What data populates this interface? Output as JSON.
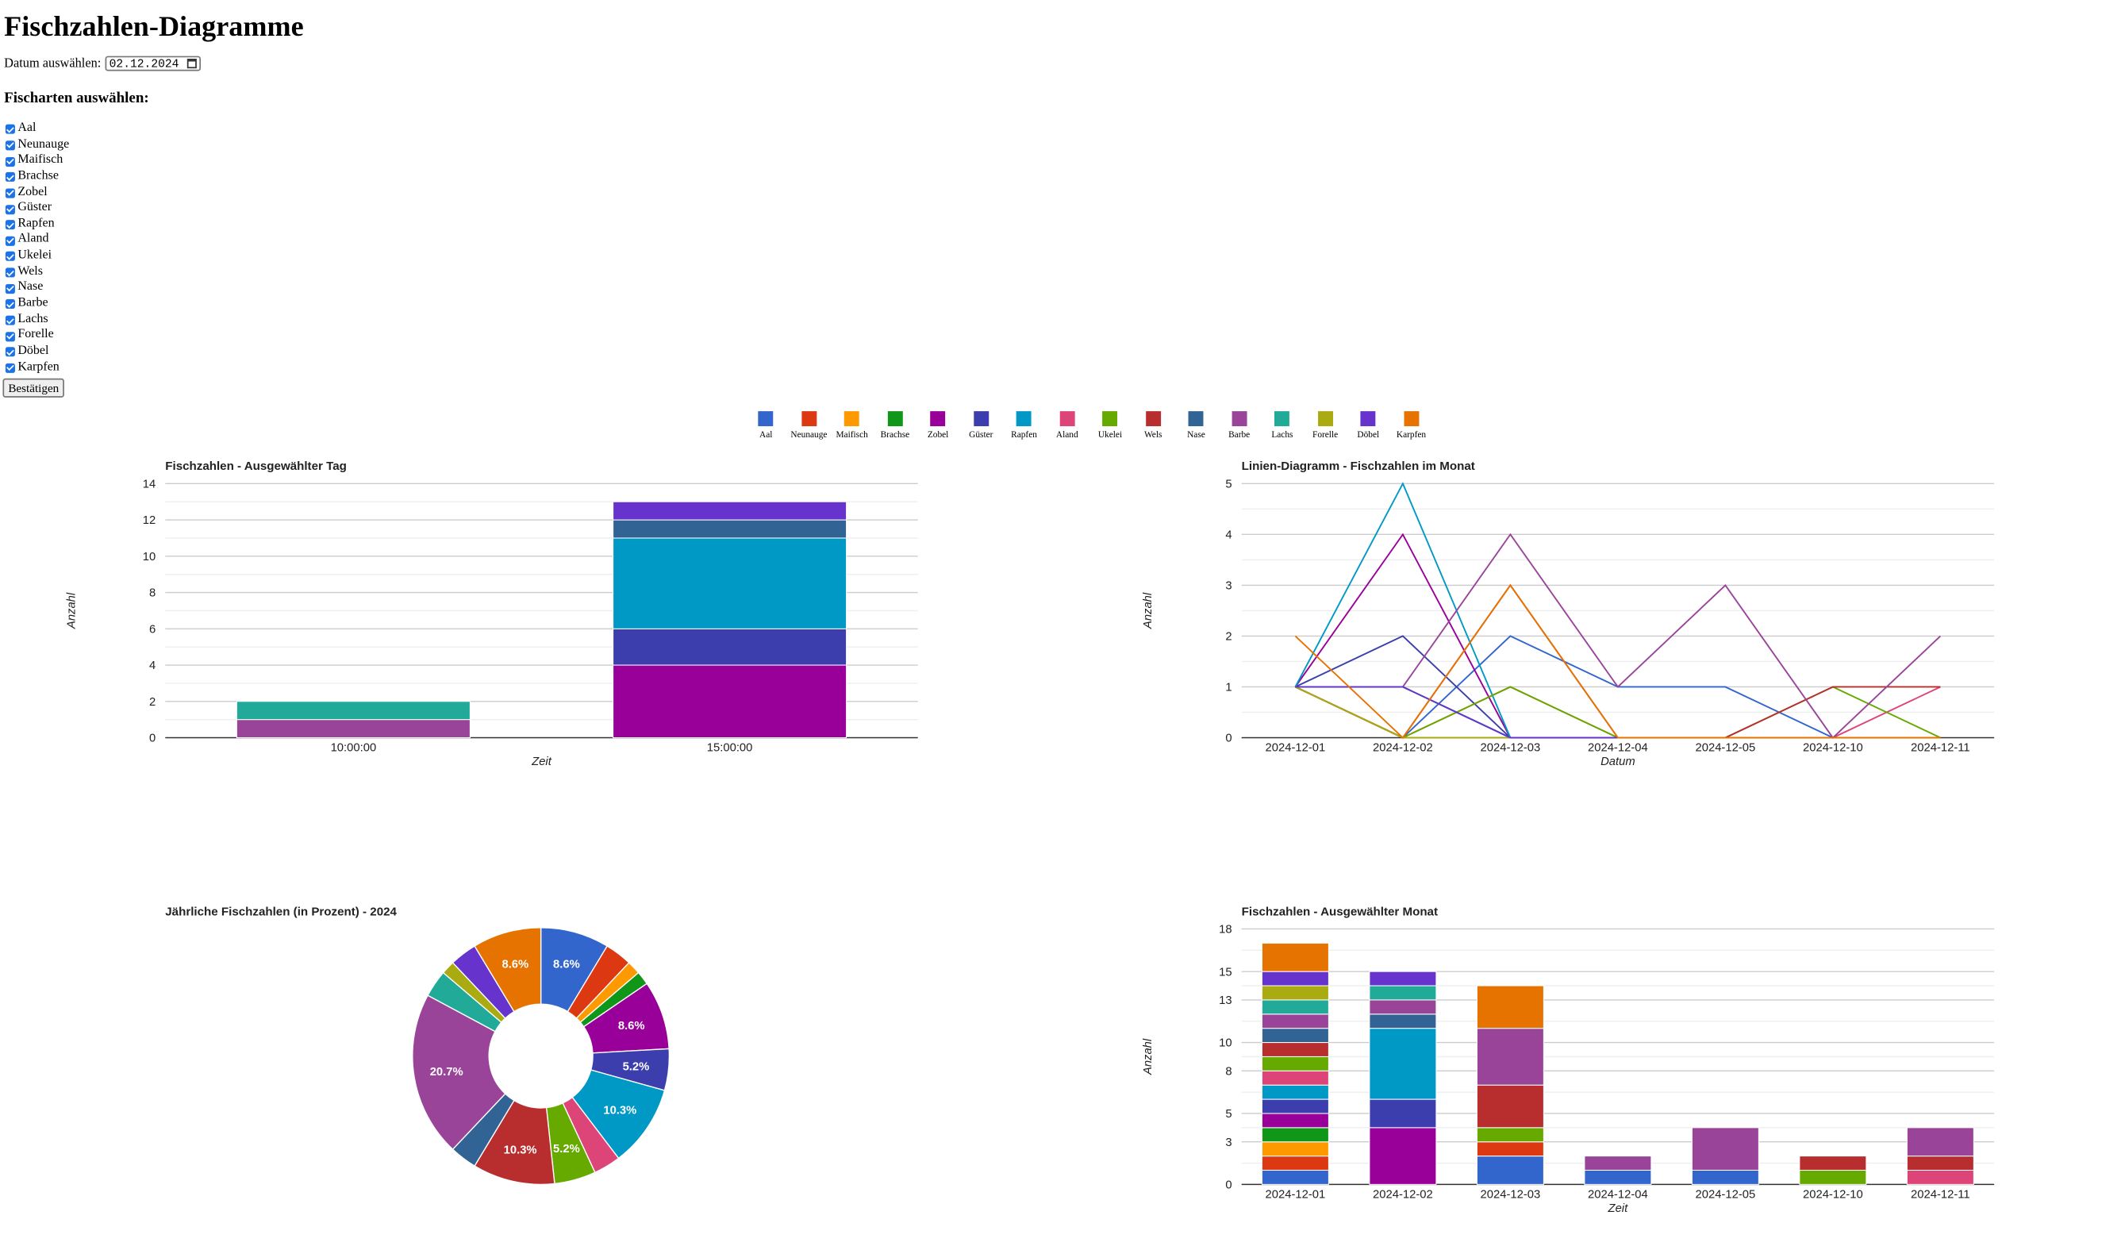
{
  "page_title": "Fischzahlen-Diagramme",
  "date_label": "Datum auswählen:",
  "date_value": "02.12.2024",
  "species_heading": "Fischarten auswählen:",
  "confirm_label": "Bestätigen",
  "species": [
    {
      "name": "Aal",
      "color": "#3366cc",
      "checked": true
    },
    {
      "name": "Neunauge",
      "color": "#dc3912",
      "checked": true
    },
    {
      "name": "Maifisch",
      "color": "#ff9900",
      "checked": true
    },
    {
      "name": "Brachse",
      "color": "#109618",
      "checked": true
    },
    {
      "name": "Zobel",
      "color": "#990099",
      "checked": true
    },
    {
      "name": "Güster",
      "color": "#3b3eac",
      "checked": true
    },
    {
      "name": "Rapfen",
      "color": "#0099c6",
      "checked": true
    },
    {
      "name": "Aland",
      "color": "#dd4477",
      "checked": true
    },
    {
      "name": "Ukelei",
      "color": "#66aa00",
      "checked": true
    },
    {
      "name": "Wels",
      "color": "#b82e2e",
      "checked": true
    },
    {
      "name": "Nase",
      "color": "#316395",
      "checked": true
    },
    {
      "name": "Barbe",
      "color": "#994499",
      "checked": true
    },
    {
      "name": "Lachs",
      "color": "#22aa99",
      "checked": true
    },
    {
      "name": "Forelle",
      "color": "#aaaa11",
      "checked": true
    },
    {
      "name": "Döbel",
      "color": "#6633cc",
      "checked": true
    },
    {
      "name": "Karpfen",
      "color": "#e67300",
      "checked": true
    }
  ],
  "chart_data": [
    {
      "id": "day",
      "type": "bar",
      "stacked": true,
      "title": "Fischzahlen - Ausgewählter Tag",
      "xlabel": "Zeit",
      "ylabel": "Anzahl",
      "ylim": [
        0,
        14
      ],
      "yticks": [
        0,
        2,
        4,
        6,
        8,
        10,
        12,
        14
      ],
      "categories": [
        "10:00:00",
        "15:00:00"
      ],
      "series": [
        {
          "name": "Zobel",
          "values": [
            0,
            4
          ]
        },
        {
          "name": "Güster",
          "values": [
            0,
            2
          ]
        },
        {
          "name": "Rapfen",
          "values": [
            0,
            5
          ]
        },
        {
          "name": "Nase",
          "values": [
            0,
            1
          ]
        },
        {
          "name": "Barbe",
          "values": [
            1,
            0
          ]
        },
        {
          "name": "Lachs",
          "values": [
            1,
            0
          ]
        },
        {
          "name": "Döbel",
          "values": [
            0,
            1
          ]
        }
      ]
    },
    {
      "id": "line",
      "type": "line",
      "title": "Linien-Diagramm - Fischzahlen im Monat",
      "xlabel": "Datum",
      "ylabel": "Anzahl",
      "ylim": [
        0,
        5
      ],
      "yticks": [
        0,
        1,
        2,
        3,
        4,
        5
      ],
      "categories": [
        "2024-12-01",
        "2024-12-02",
        "2024-12-03",
        "2024-12-04",
        "2024-12-05",
        "2024-12-10",
        "2024-12-11"
      ],
      "series": [
        {
          "name": "Aal",
          "values": [
            1,
            0,
            2,
            1,
            1,
            0,
            0
          ]
        },
        {
          "name": "Neunauge",
          "values": [
            1,
            0,
            1,
            0,
            0,
            0,
            0
          ]
        },
        {
          "name": "Maifisch",
          "values": [
            1,
            0,
            0,
            0,
            0,
            0,
            0
          ]
        },
        {
          "name": "Brachse",
          "values": [
            1,
            0,
            0,
            0,
            0,
            0,
            0
          ]
        },
        {
          "name": "Zobel",
          "values": [
            1,
            4,
            0,
            0,
            0,
            0,
            0
          ]
        },
        {
          "name": "Güster",
          "values": [
            1,
            2,
            0,
            0,
            0,
            0,
            0
          ]
        },
        {
          "name": "Rapfen",
          "values": [
            1,
            5,
            0,
            0,
            0,
            0,
            0
          ]
        },
        {
          "name": "Aland",
          "values": [
            1,
            0,
            0,
            0,
            0,
            0,
            1
          ]
        },
        {
          "name": "Ukelei",
          "values": [
            1,
            0,
            1,
            0,
            0,
            1,
            0
          ]
        },
        {
          "name": "Wels",
          "values": [
            1,
            0,
            3,
            0,
            0,
            1,
            1
          ]
        },
        {
          "name": "Nase",
          "values": [
            1,
            1,
            0,
            0,
            0,
            0,
            0
          ]
        },
        {
          "name": "Barbe",
          "values": [
            1,
            1,
            4,
            1,
            3,
            0,
            2
          ]
        },
        {
          "name": "Lachs",
          "values": [
            1,
            1,
            0,
            0,
            0,
            0,
            0
          ]
        },
        {
          "name": "Forelle",
          "values": [
            1,
            0,
            0,
            0,
            0,
            0,
            0
          ]
        },
        {
          "name": "Döbel",
          "values": [
            1,
            1,
            0,
            0,
            0,
            0,
            0
          ]
        },
        {
          "name": "Karpfen",
          "values": [
            2,
            0,
            3,
            0,
            0,
            0,
            0
          ]
        }
      ]
    },
    {
      "id": "pie",
      "type": "pie",
      "donut": true,
      "title": "Jährliche Fischzahlen (in Prozent) - 2024",
      "slices": [
        {
          "name": "Aal",
          "value": 8.6,
          "label": "8.6%"
        },
        {
          "name": "Neunauge",
          "value": 3.4
        },
        {
          "name": "Maifisch",
          "value": 1.7
        },
        {
          "name": "Brachse",
          "value": 1.7
        },
        {
          "name": "Zobel",
          "value": 8.6,
          "label": "8.6%"
        },
        {
          "name": "Güster",
          "value": 5.2,
          "label": "5.2%"
        },
        {
          "name": "Rapfen",
          "value": 10.3,
          "label": "10.3%"
        },
        {
          "name": "Aland",
          "value": 3.4
        },
        {
          "name": "Ukelei",
          "value": 5.2,
          "label": "5.2%"
        },
        {
          "name": "Wels",
          "value": 10.3,
          "label": "10.3%"
        },
        {
          "name": "Nase",
          "value": 3.4
        },
        {
          "name": "Barbe",
          "value": 20.7,
          "label": "20.7%"
        },
        {
          "name": "Lachs",
          "value": 3.4
        },
        {
          "name": "Forelle",
          "value": 1.7
        },
        {
          "name": "Döbel",
          "value": 3.4
        },
        {
          "name": "Karpfen",
          "value": 8.6,
          "label": "8.6%"
        }
      ]
    },
    {
      "id": "month",
      "type": "bar",
      "stacked": true,
      "title": "Fischzahlen - Ausgewählter Monat",
      "xlabel": "Zeit",
      "ylabel": "Anzahl",
      "ylim": [
        0,
        18
      ],
      "yticks": [
        0,
        3,
        5,
        8,
        10,
        13,
        15,
        18
      ],
      "categories": [
        "2024-12-01",
        "2024-12-02",
        "2024-12-03",
        "2024-12-04",
        "2024-12-05",
        "2024-12-10",
        "2024-12-11"
      ],
      "series": [
        {
          "name": "Aal",
          "values": [
            1,
            0,
            2,
            1,
            1,
            0,
            0
          ]
        },
        {
          "name": "Neunauge",
          "values": [
            1,
            0,
            1,
            0,
            0,
            0,
            0
          ]
        },
        {
          "name": "Maifisch",
          "values": [
            1,
            0,
            0,
            0,
            0,
            0,
            0
          ]
        },
        {
          "name": "Brachse",
          "values": [
            1,
            0,
            0,
            0,
            0,
            0,
            0
          ]
        },
        {
          "name": "Zobel",
          "values": [
            1,
            4,
            0,
            0,
            0,
            0,
            0
          ]
        },
        {
          "name": "Güster",
          "values": [
            1,
            2,
            0,
            0,
            0,
            0,
            0
          ]
        },
        {
          "name": "Rapfen",
          "values": [
            1,
            5,
            0,
            0,
            0,
            0,
            0
          ]
        },
        {
          "name": "Aland",
          "values": [
            1,
            0,
            0,
            0,
            0,
            0,
            1
          ]
        },
        {
          "name": "Ukelei",
          "values": [
            1,
            0,
            1,
            0,
            0,
            1,
            0
          ]
        },
        {
          "name": "Wels",
          "values": [
            1,
            0,
            3,
            0,
            0,
            1,
            1
          ]
        },
        {
          "name": "Nase",
          "values": [
            1,
            1,
            0,
            0,
            0,
            0,
            0
          ]
        },
        {
          "name": "Barbe",
          "values": [
            1,
            1,
            4,
            1,
            3,
            0,
            2
          ]
        },
        {
          "name": "Lachs",
          "values": [
            1,
            1,
            0,
            0,
            0,
            0,
            0
          ]
        },
        {
          "name": "Forelle",
          "values": [
            1,
            0,
            0,
            0,
            0,
            0,
            0
          ]
        },
        {
          "name": "Döbel",
          "values": [
            1,
            1,
            0,
            0,
            0,
            0,
            0
          ]
        },
        {
          "name": "Karpfen",
          "values": [
            2,
            0,
            3,
            0,
            0,
            0,
            0
          ]
        }
      ]
    }
  ]
}
